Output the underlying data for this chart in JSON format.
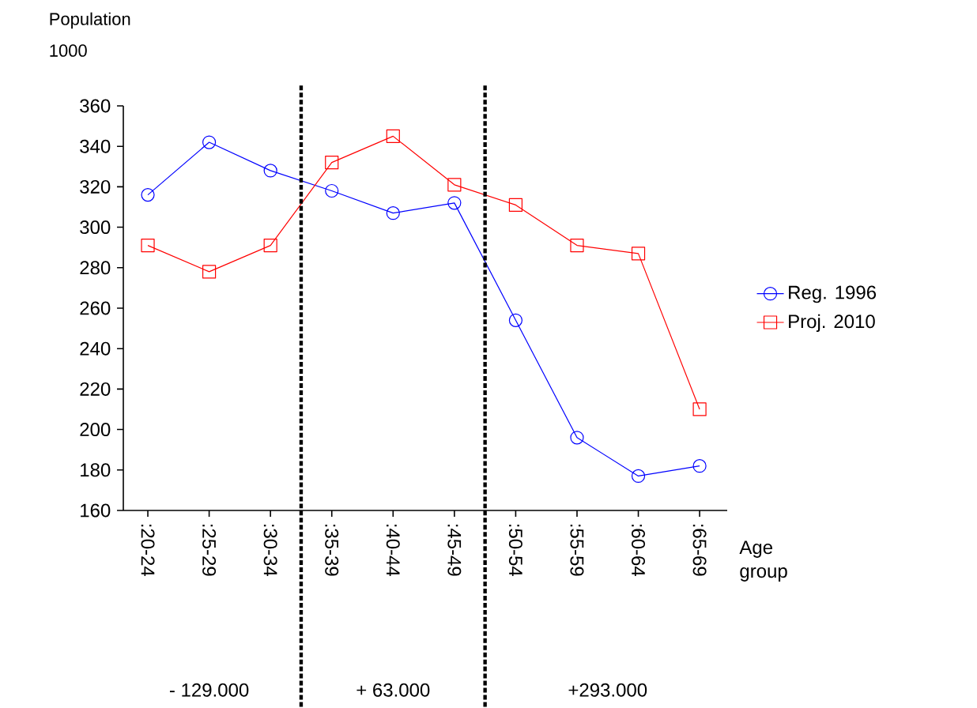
{
  "chart_data": {
    "type": "line",
    "ylabel": "Population 1000",
    "xlabel": "Age group",
    "categories": [
      ":20-24",
      ":25-29",
      ":30-34",
      ":35-39",
      ":40-44",
      ":45-49",
      ":50-54",
      ":55-59",
      ":60-64",
      ":65-69"
    ],
    "series": [
      {
        "name": "Reg. 1996",
        "color": "#0000ff",
        "marker": "circle",
        "values": [
          316,
          342,
          328,
          318,
          307,
          312,
          254,
          196,
          177,
          182
        ]
      },
      {
        "name": "Proj. 2010",
        "color": "#ff0000",
        "marker": "square",
        "values": [
          291,
          278,
          291,
          332,
          345,
          321,
          311,
          291,
          287,
          210
        ]
      }
    ],
    "ylim": [
      160,
      360
    ],
    "yticks": [
      160,
      180,
      200,
      220,
      240,
      260,
      280,
      300,
      320,
      340,
      360
    ],
    "annotations": [
      "- 129.000",
      "+ 63.000",
      "+293.000"
    ],
    "grid": false,
    "legend": "right",
    "line_style": "solid"
  }
}
